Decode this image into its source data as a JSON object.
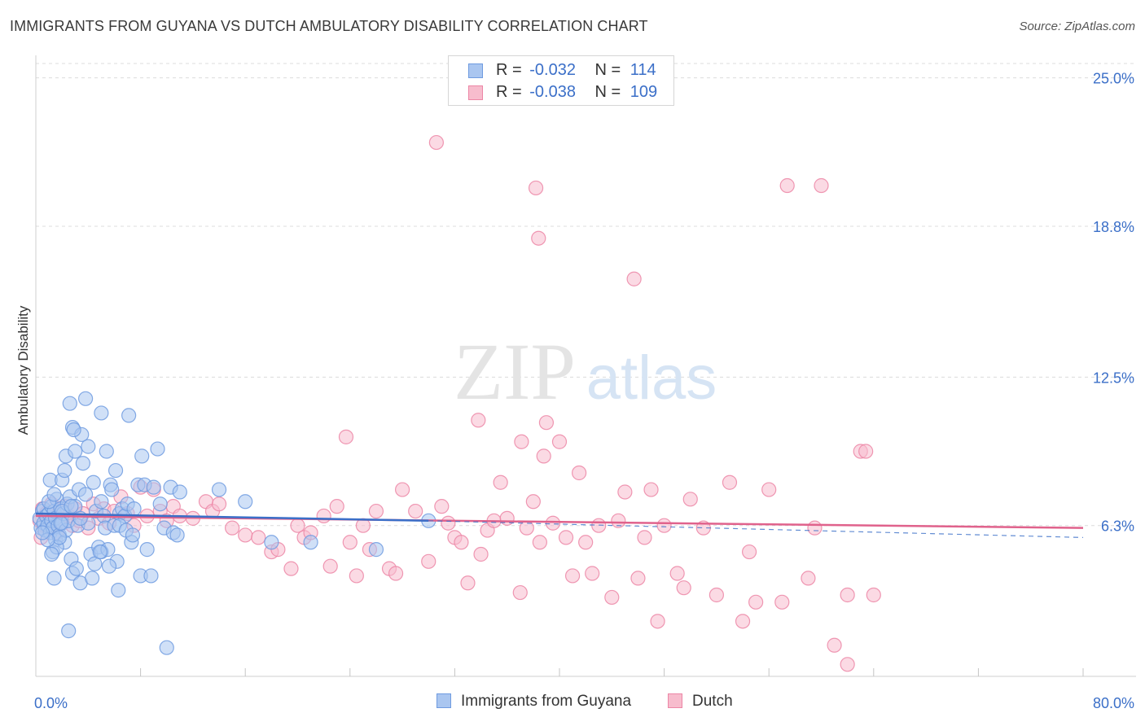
{
  "title": "IMMIGRANTS FROM GUYANA VS DUTCH AMBULATORY DISABILITY CORRELATION CHART",
  "source": "Source: ZipAtlas.com",
  "watermark": {
    "zip": "ZIP",
    "atlas": "atlas"
  },
  "legend": {
    "r_label": "R =",
    "n_label": "N =",
    "items": [
      {
        "r": "-0.032",
        "n": "114",
        "color": "#6f9be0",
        "fill": "#aac6f0"
      },
      {
        "r": "-0.038",
        "n": "109",
        "color": "#ec86a6",
        "fill": "#f7bccd"
      }
    ]
  },
  "chart_data": {
    "type": "scatter",
    "title": "IMMIGRANTS FROM GUYANA VS DUTCH AMBULATORY DISABILITY CORRELATION CHART",
    "xlabel": "",
    "ylabel": "Ambulatory Disability",
    "xlim": [
      0,
      80
    ],
    "ylim": [
      0,
      25.6
    ],
    "x_tick_labels": [
      "0.0%",
      "80.0%"
    ],
    "y_ticks": [
      6.3,
      12.5,
      18.8,
      25.0
    ],
    "y_tick_labels": [
      "6.3%",
      "12.5%",
      "18.8%",
      "25.0%"
    ],
    "grid": true,
    "series": [
      {
        "name": "Immigrants from Guyana",
        "color": "#6f9be0",
        "fill": "#aac6f0",
        "trend": {
          "x0": 0,
          "y0": 6.8,
          "x1": 30,
          "y1": 6.5,
          "dash_to_x": 80,
          "dash_to_y": 5.8
        },
        "points": [
          [
            0.3,
            6.6
          ],
          [
            0.4,
            6.2
          ],
          [
            0.5,
            6.9
          ],
          [
            0.6,
            6.4
          ],
          [
            0.6,
            7.0
          ],
          [
            0.7,
            6.1
          ],
          [
            0.8,
            6.7
          ],
          [
            0.9,
            6.3
          ],
          [
            1.0,
            6.8
          ],
          [
            1.1,
            6.0
          ],
          [
            1.2,
            6.5
          ],
          [
            1.2,
            7.1
          ],
          [
            1.3,
            6.2
          ],
          [
            1.4,
            6.9
          ],
          [
            1.5,
            5.7
          ],
          [
            1.5,
            6.6
          ],
          [
            1.6,
            7.4
          ],
          [
            1.7,
            6.3
          ],
          [
            1.8,
            5.9
          ],
          [
            1.9,
            7.0
          ],
          [
            2.0,
            6.4
          ],
          [
            2.1,
            6.8
          ],
          [
            2.2,
            5.6
          ],
          [
            2.3,
            6.1
          ],
          [
            2.4,
            7.2
          ],
          [
            1.0,
            7.3
          ],
          [
            1.1,
            8.2
          ],
          [
            1.4,
            7.6
          ],
          [
            1.3,
            5.2
          ],
          [
            1.6,
            5.4
          ],
          [
            1.8,
            5.8
          ],
          [
            2.0,
            6.9
          ],
          [
            2.5,
            6.5
          ],
          [
            2.6,
            7.5
          ],
          [
            2.7,
            4.9
          ],
          [
            2.8,
            4.3
          ],
          [
            3.0,
            7.1
          ],
          [
            3.1,
            4.5
          ],
          [
            3.2,
            6.3
          ],
          [
            3.3,
            7.8
          ],
          [
            3.4,
            3.9
          ],
          [
            3.6,
            8.9
          ],
          [
            3.8,
            7.6
          ],
          [
            4.0,
            6.4
          ],
          [
            4.2,
            5.1
          ],
          [
            4.3,
            4.1
          ],
          [
            4.5,
            4.7
          ],
          [
            4.6,
            6.9
          ],
          [
            4.8,
            5.4
          ],
          [
            5.0,
            7.3
          ],
          [
            5.0,
            5.2
          ],
          [
            5.2,
            6.7
          ],
          [
            5.3,
            6.2
          ],
          [
            5.5,
            5.3
          ],
          [
            5.7,
            8.0
          ],
          [
            5.8,
            7.8
          ],
          [
            6.0,
            6.3
          ],
          [
            6.1,
            8.6
          ],
          [
            6.2,
            4.8
          ],
          [
            6.3,
            3.6
          ],
          [
            6.4,
            6.8
          ],
          [
            6.6,
            7.0
          ],
          [
            6.8,
            6.7
          ],
          [
            7.0,
            7.2
          ],
          [
            7.1,
            10.9
          ],
          [
            7.3,
            5.6
          ],
          [
            7.5,
            7.0
          ],
          [
            7.8,
            8.0
          ],
          [
            8.0,
            4.2
          ],
          [
            8.1,
            9.2
          ],
          [
            8.3,
            8.0
          ],
          [
            8.5,
            5.3
          ],
          [
            8.8,
            4.2
          ],
          [
            9.0,
            7.9
          ],
          [
            9.3,
            9.5
          ],
          [
            9.5,
            7.2
          ],
          [
            9.8,
            6.2
          ],
          [
            10.0,
            1.2
          ],
          [
            10.3,
            7.9
          ],
          [
            10.5,
            6.0
          ],
          [
            10.8,
            5.9
          ],
          [
            11.0,
            7.7
          ],
          [
            2.0,
            8.2
          ],
          [
            2.2,
            8.6
          ],
          [
            2.3,
            9.2
          ],
          [
            2.5,
            1.9
          ],
          [
            3.0,
            9.4
          ],
          [
            2.8,
            10.4
          ],
          [
            2.6,
            11.4
          ],
          [
            3.5,
            10.1
          ],
          [
            3.8,
            11.6
          ],
          [
            4.0,
            9.6
          ],
          [
            4.4,
            8.1
          ],
          [
            2.9,
            10.3
          ],
          [
            5.0,
            11.0
          ],
          [
            5.4,
            9.4
          ],
          [
            6.4,
            6.3
          ],
          [
            14.0,
            7.8
          ],
          [
            16.0,
            7.3
          ],
          [
            18.0,
            5.6
          ],
          [
            21.0,
            5.6
          ],
          [
            26.0,
            5.3
          ],
          [
            30.0,
            6.5
          ],
          [
            1.4,
            4.1
          ],
          [
            1.2,
            5.1
          ],
          [
            0.9,
            5.7
          ],
          [
            0.5,
            6.0
          ],
          [
            1.9,
            6.4
          ],
          [
            2.7,
            7.1
          ],
          [
            3.4,
            6.6
          ],
          [
            4.9,
            5.2
          ],
          [
            5.6,
            4.6
          ],
          [
            6.9,
            6.1
          ],
          [
            7.4,
            5.9
          ]
        ]
      },
      {
        "name": "Dutch",
        "color": "#ec86a6",
        "fill": "#f7bccd",
        "trend": {
          "x0": 0,
          "y0": 6.7,
          "x1": 80,
          "y1": 6.2
        },
        "points": [
          [
            0.3,
            6.5
          ],
          [
            0.5,
            7.0
          ],
          [
            0.6,
            6.3
          ],
          [
            0.8,
            6.8
          ],
          [
            1.0,
            6.2
          ],
          [
            1.2,
            7.2
          ],
          [
            1.4,
            6.6
          ],
          [
            1.6,
            6.0
          ],
          [
            1.8,
            6.9
          ],
          [
            2.0,
            6.4
          ],
          [
            2.2,
            7.1
          ],
          [
            2.5,
            6.7
          ],
          [
            2.8,
            6.3
          ],
          [
            3.0,
            7.0
          ],
          [
            3.3,
            6.5
          ],
          [
            3.6,
            6.8
          ],
          [
            4.0,
            6.2
          ],
          [
            4.4,
            7.2
          ],
          [
            4.8,
            6.6
          ],
          [
            5.2,
            7.0
          ],
          [
            5.6,
            6.4
          ],
          [
            6.0,
            6.9
          ],
          [
            6.5,
            7.5
          ],
          [
            7.0,
            6.8
          ],
          [
            7.5,
            6.3
          ],
          [
            8.0,
            7.9
          ],
          [
            8.5,
            6.7
          ],
          [
            9.0,
            7.8
          ],
          [
            9.5,
            6.9
          ],
          [
            10.0,
            6.5
          ],
          [
            10.5,
            7.1
          ],
          [
            11.0,
            6.7
          ],
          [
            12.0,
            6.6
          ],
          [
            13.0,
            7.3
          ],
          [
            13.5,
            6.9
          ],
          [
            14.0,
            7.2
          ],
          [
            15.0,
            6.2
          ],
          [
            16.0,
            5.9
          ],
          [
            17.0,
            5.8
          ],
          [
            18.0,
            5.2
          ],
          [
            18.5,
            5.3
          ],
          [
            19.5,
            4.5
          ],
          [
            20.0,
            6.3
          ],
          [
            20.5,
            5.8
          ],
          [
            21.0,
            6.0
          ],
          [
            22.0,
            6.7
          ],
          [
            22.5,
            4.6
          ],
          [
            23.0,
            7.1
          ],
          [
            24.0,
            5.6
          ],
          [
            24.5,
            4.2
          ],
          [
            25.0,
            6.3
          ],
          [
            25.5,
            5.3
          ],
          [
            26.0,
            6.9
          ],
          [
            27.0,
            4.5
          ],
          [
            27.5,
            4.3
          ],
          [
            28.0,
            7.8
          ],
          [
            29.0,
            6.9
          ],
          [
            30.0,
            4.8
          ],
          [
            31.0,
            7.1
          ],
          [
            31.5,
            6.4
          ],
          [
            32.0,
            5.8
          ],
          [
            32.5,
            5.6
          ],
          [
            33.0,
            3.9
          ],
          [
            34.0,
            5.1
          ],
          [
            34.5,
            6.1
          ],
          [
            35.0,
            6.5
          ],
          [
            35.5,
            8.1
          ],
          [
            36.0,
            6.6
          ],
          [
            37.0,
            3.5
          ],
          [
            37.5,
            6.2
          ],
          [
            38.0,
            7.3
          ],
          [
            38.5,
            5.6
          ],
          [
            38.8,
            9.2
          ],
          [
            39.0,
            10.6
          ],
          [
            39.5,
            6.4
          ],
          [
            40.0,
            9.8
          ],
          [
            40.5,
            5.8
          ],
          [
            41.0,
            4.2
          ],
          [
            41.5,
            8.5
          ],
          [
            42.0,
            5.6
          ],
          [
            42.5,
            4.3
          ],
          [
            43.0,
            6.3
          ],
          [
            44.0,
            3.3
          ],
          [
            44.5,
            6.5
          ],
          [
            45.0,
            7.7
          ],
          [
            46.0,
            4.1
          ],
          [
            46.5,
            5.8
          ],
          [
            47.0,
            7.8
          ],
          [
            47.5,
            2.3
          ],
          [
            48.0,
            6.3
          ],
          [
            49.0,
            4.3
          ],
          [
            49.5,
            3.7
          ],
          [
            50.0,
            7.4
          ],
          [
            51.0,
            6.2
          ],
          [
            52.0,
            3.4
          ],
          [
            53.0,
            8.1
          ],
          [
            54.0,
            2.3
          ],
          [
            54.5,
            5.2
          ],
          [
            55.0,
            3.1
          ],
          [
            56.0,
            7.8
          ],
          [
            57.0,
            3.1
          ],
          [
            59.0,
            4.1
          ],
          [
            59.5,
            6.2
          ],
          [
            60.0,
            20.5
          ],
          [
            61.0,
            1.3
          ],
          [
            62.0,
            3.4
          ],
          [
            63.0,
            9.4
          ],
          [
            64.0,
            3.4
          ],
          [
            0.4,
            5.8
          ]
        ]
      }
    ],
    "dutch_outliers": [
      [
        30.6,
        22.3
      ],
      [
        38.2,
        20.4
      ],
      [
        38.4,
        18.3
      ],
      [
        45.7,
        16.6
      ],
      [
        57.4,
        20.5
      ],
      [
        63.4,
        9.4
      ],
      [
        33.8,
        10.7
      ],
      [
        37.1,
        9.8
      ],
      [
        23.7,
        10.0
      ],
      [
        62.0,
        0.5
      ]
    ]
  },
  "colors": {
    "grid": "#dcdcdc",
    "axis": "#cfcfcf",
    "tick_label": "#3b6fc8",
    "blue_trend": "#3b6fc8",
    "pink_trend": "#e0628c"
  }
}
